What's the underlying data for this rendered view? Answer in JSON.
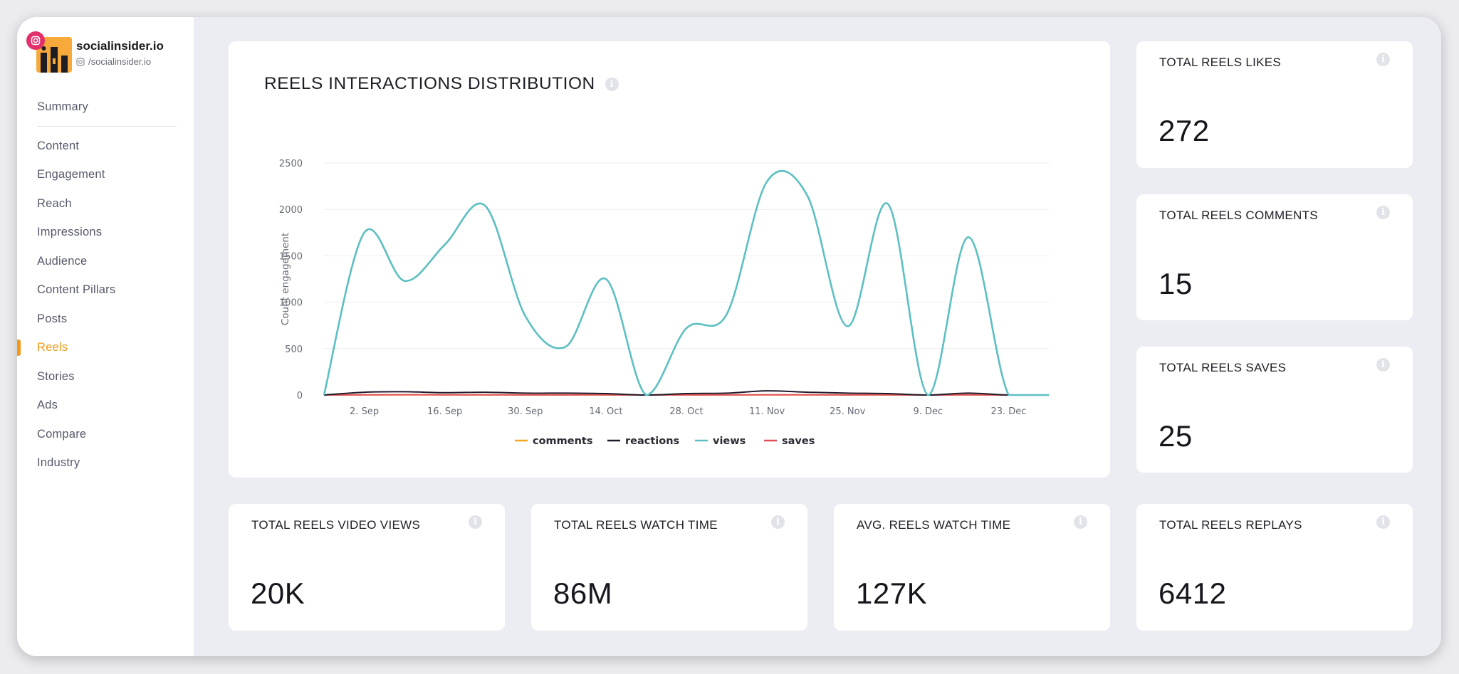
{
  "brand": {
    "name": "socialinsider.io",
    "handle": "/socialinsider.io"
  },
  "nav": {
    "summary": "Summary",
    "items": [
      "Content",
      "Engagement",
      "Reach",
      "Impressions",
      "Audience",
      "Content Pillars",
      "Posts",
      "Reels",
      "Stories",
      "Ads",
      "Compare",
      "Industry"
    ],
    "active": "Reels"
  },
  "chart": {
    "title": "REELS INTERACTIONS DISTRIBUTION"
  },
  "metrics": {
    "likes": {
      "title": "TOTAL REELS LIKES",
      "value": "272"
    },
    "comments": {
      "title": "TOTAL REELS COMMENTS",
      "value": "15"
    },
    "saves": {
      "title": "TOTAL REELS SAVES",
      "value": "25"
    },
    "video_views": {
      "title": "TOTAL REELS VIDEO VIEWS",
      "value": "20K"
    },
    "watch_time": {
      "title": "TOTAL REELS WATCH TIME",
      "value": "86M"
    },
    "avg_watch_time": {
      "title": "AVG. REELS WATCH TIME",
      "value": "127K"
    },
    "replays": {
      "title": "TOTAL REELS REPLAYS",
      "value": "6412"
    }
  },
  "colors": {
    "accent": "#f29a18",
    "instagram": "#e1306c"
  },
  "chart_data": {
    "type": "line",
    "title": "REELS INTERACTIONS DISTRIBUTION",
    "xlabel": "",
    "ylabel": "Count engagement",
    "ylim": [
      0,
      2500
    ],
    "yticks": [
      "0",
      "500",
      "1000",
      "1500",
      "2000",
      "2500"
    ],
    "xticks": [
      "2. Sep",
      "16. Sep",
      "30. Sep",
      "14. Oct",
      "28. Oct",
      "11. Nov",
      "25. Nov",
      "9. Dec",
      "23. Dec"
    ],
    "x": [
      "26. Aug",
      "2. Sep",
      "9. Sep",
      "16. Sep",
      "23. Sep",
      "30. Sep",
      "7. Oct",
      "14. Oct",
      "21. Oct",
      "28. Oct",
      "4. Nov",
      "11. Nov",
      "18. Nov",
      "25. Nov",
      "2. Dec",
      "9. Dec",
      "16. Dec",
      "23. Dec",
      "30. Dec"
    ],
    "series": [
      {
        "name": "comments",
        "color": "#f5a623",
        "values": [
          0,
          1,
          2,
          1,
          1,
          1,
          1,
          1,
          0,
          1,
          1,
          1,
          1,
          1,
          1,
          0,
          1,
          0,
          0
        ]
      },
      {
        "name": "reactions",
        "color": "#1f1b2b",
        "values": [
          0,
          30,
          35,
          25,
          30,
          20,
          20,
          15,
          0,
          15,
          20,
          45,
          30,
          20,
          15,
          0,
          20,
          0,
          0
        ]
      },
      {
        "name": "views",
        "color": "#5cbfc2",
        "values": [
          0,
          1750,
          1230,
          1620,
          2040,
          850,
          520,
          1250,
          0,
          720,
          870,
          2300,
          2150,
          740,
          2060,
          0,
          1700,
          0,
          0
        ]
      },
      {
        "name": "saves",
        "color": "#e0505a",
        "values": [
          0,
          2,
          3,
          2,
          2,
          1,
          1,
          2,
          0,
          1,
          1,
          3,
          2,
          1,
          2,
          0,
          2,
          0,
          0
        ]
      }
    ],
    "legend": "bottom-center"
  }
}
